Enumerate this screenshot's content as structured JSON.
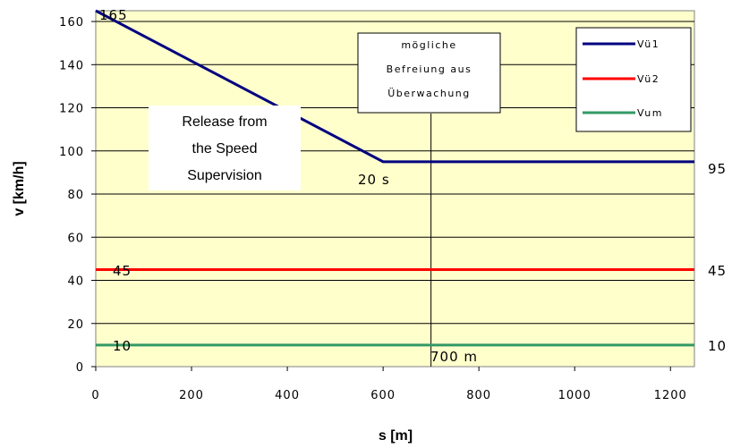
{
  "chart_data": {
    "type": "line",
    "xlabel": "s [m]",
    "ylabel": "v [km/h]",
    "xlim": [
      0,
      1250
    ],
    "ylim": [
      0,
      165
    ],
    "x_ticks": [
      0,
      200,
      400,
      600,
      800,
      1000,
      1200
    ],
    "y_ticks": [
      0,
      20,
      40,
      60,
      80,
      100,
      120,
      140,
      160
    ],
    "grid": "horizontal",
    "background": "#ffffcc",
    "series": [
      {
        "name": "Vü1",
        "color": "#000080",
        "points": [
          [
            0,
            165
          ],
          [
            600,
            95
          ],
          [
            1250,
            95
          ]
        ]
      },
      {
        "name": "Vü2",
        "color": "#ff0000",
        "points": [
          [
            0,
            45
          ],
          [
            1250,
            45
          ]
        ]
      },
      {
        "name": "Vum",
        "color": "#339966",
        "points": [
          [
            0,
            10
          ],
          [
            1250,
            10
          ]
        ]
      }
    ],
    "annotations": {
      "start_value": "165",
      "vu2_left": "45",
      "vum_left": "10",
      "time_label": "20 s",
      "right_labels": [
        "95",
        "45",
        "10"
      ],
      "marker_label": "700 m",
      "marker_x": 700
    },
    "german_box": [
      "mögliche",
      "Befreiung aus",
      "Überwachung"
    ],
    "release_box": [
      "Release from",
      "the Speed",
      "Supervision"
    ],
    "legend_position": "top-right"
  }
}
